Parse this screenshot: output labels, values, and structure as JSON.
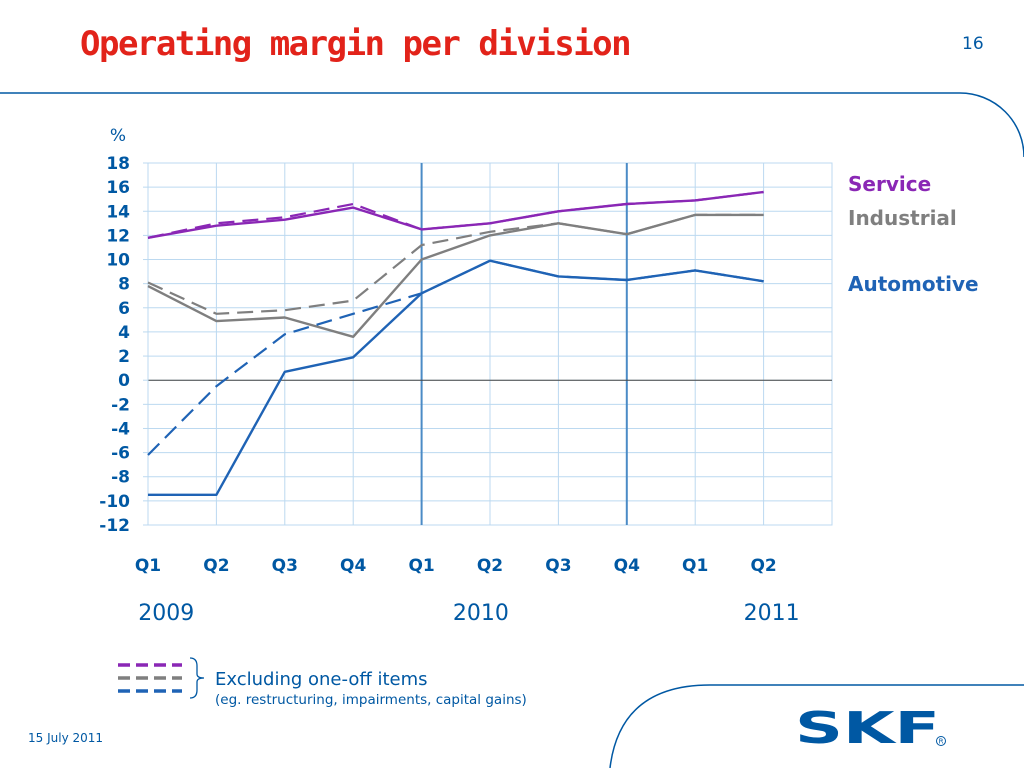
{
  "slide": {
    "title": "Operating margin per division",
    "page_number": "16",
    "footer_date": "15 July 2011",
    "logo_text": "SKF"
  },
  "legend": {
    "line1": "Excluding one-off items",
    "line2": "(eg. restructuring, impairments, capital gains)"
  },
  "colors": {
    "title": "#e2231a",
    "accent_blue": "#0058a3",
    "service": "#8a27b5",
    "industrial": "#7f7f7f",
    "automotive": "#1f63b5",
    "grid": "#bcd9f0"
  },
  "chart_data": {
    "type": "line",
    "ylabel": "%",
    "ylim": [
      -12,
      18
    ],
    "yticks": [
      18,
      16,
      14,
      12,
      10,
      8,
      6,
      4,
      2,
      0,
      -2,
      -4,
      -6,
      -8,
      -10,
      -12
    ],
    "categories": [
      "Q1",
      "Q2",
      "Q3",
      "Q4",
      "Q1",
      "Q2",
      "Q3",
      "Q4",
      "Q1",
      "Q2"
    ],
    "years": [
      {
        "label": "2009",
        "at_index": 0.15
      },
      {
        "label": "2010",
        "at_index": 4.75
      },
      {
        "label": "2011",
        "at_index": 9.0
      }
    ],
    "grid": true,
    "series": [
      {
        "name": "Service",
        "style": "solid",
        "color": "#8a27b5",
        "values": [
          11.8,
          12.8,
          13.3,
          14.3,
          12.5,
          13.0,
          14.0,
          14.6,
          14.9,
          15.6
        ]
      },
      {
        "style": "dashed",
        "color": "#8a27b5",
        "values": [
          11.8,
          13.0,
          13.5,
          14.6,
          12.5,
          13.0,
          14.0,
          14.6,
          14.9,
          15.6
        ]
      },
      {
        "name": "Industrial",
        "style": "solid",
        "color": "#7f7f7f",
        "values": [
          7.8,
          4.9,
          5.2,
          3.6,
          10.0,
          12.0,
          13.0,
          12.1,
          13.7,
          13.7
        ]
      },
      {
        "style": "dashed",
        "color": "#7f7f7f",
        "values": [
          8.1,
          5.5,
          5.8,
          6.6,
          11.2,
          12.3,
          13.0,
          12.1,
          13.7,
          13.7
        ]
      },
      {
        "name": "Automotive",
        "style": "solid",
        "color": "#1f63b5",
        "values": [
          -9.5,
          -9.5,
          0.7,
          1.9,
          7.2,
          9.9,
          8.6,
          8.3,
          9.1,
          8.2
        ]
      },
      {
        "style": "dashed",
        "color": "#1f63b5",
        "values": [
          -6.2,
          -0.5,
          3.8,
          5.5,
          7.2,
          9.9,
          8.6,
          8.3,
          9.1,
          8.2
        ]
      }
    ]
  }
}
